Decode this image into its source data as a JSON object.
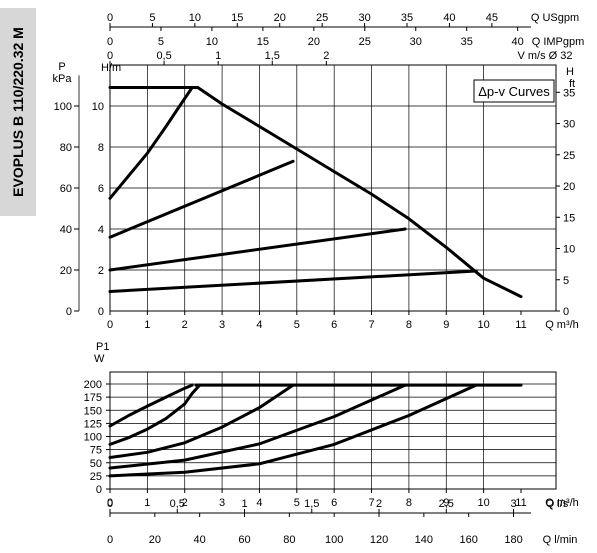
{
  "model_title": "EVOPLUS B 110/220.32 M",
  "chart_data": [
    {
      "type": "line",
      "title": "",
      "legend_label": "Δp-v Curves",
      "legend_position": "top-right",
      "grid": true,
      "xlabel": "Q m³/h",
      "xlim": [
        0,
        11
      ],
      "x_ticks": [
        "0",
        "1",
        "2",
        "3",
        "4",
        "5",
        "6",
        "7",
        "8",
        "9",
        "10",
        "11"
      ],
      "ylabel_left_top": "H/m",
      "ylim_left": [
        0,
        12
      ],
      "y_ticks_left": [
        "0",
        "2",
        "4",
        "6",
        "8",
        "10"
      ],
      "ylabel_far_left": "P",
      "ylabel_far_left_unit": "kPa",
      "y_ticks_far_left": [
        "0",
        "20",
        "40",
        "60",
        "80",
        "100"
      ],
      "ylabel_right": "H",
      "ylabel_right_unit": "ft",
      "y_ticks_right": [
        "0",
        "5",
        "10",
        "15",
        "20",
        "25",
        "30",
        "35"
      ],
      "top_axes": [
        {
          "label": "Q USgpm",
          "ticks": [
            "0",
            "5",
            "10",
            "15",
            "20",
            "25",
            "30",
            "35",
            "40",
            "45"
          ]
        },
        {
          "label": "Q IMPgpm",
          "ticks": [
            "0",
            "5",
            "10",
            "15",
            "20",
            "25",
            "30",
            "35",
            "40"
          ]
        },
        {
          "label": "V m/s Ø 32",
          "ticks": [
            "0",
            "0,5",
            "1",
            "1,5",
            "2"
          ]
        }
      ],
      "series": [
        {
          "points": [
            [
              0,
              5.5
            ],
            [
              0.5,
              6.6
            ],
            [
              1,
              7.7
            ],
            [
              1.5,
              9.0
            ],
            [
              1.9,
              10.1
            ],
            [
              2.2,
              10.9
            ]
          ]
        },
        {
          "points": [
            [
              0,
              10.9
            ],
            [
              2.2,
              10.9
            ],
            [
              2.35,
              10.9
            ]
          ]
        },
        {
          "points": [
            [
              2.35,
              10.9
            ],
            [
              3,
              10.1
            ],
            [
              4,
              9.0
            ],
            [
              5,
              7.9
            ],
            [
              6,
              6.8
            ],
            [
              7,
              5.7
            ],
            [
              8,
              4.5
            ],
            [
              9,
              3.1
            ],
            [
              10,
              1.6
            ],
            [
              11,
              0.7
            ]
          ]
        },
        {
          "points": [
            [
              0,
              3.6
            ],
            [
              4.9,
              7.3
            ]
          ]
        },
        {
          "points": [
            [
              0,
              2.0
            ],
            [
              7.9,
              4.0
            ]
          ]
        },
        {
          "points": [
            [
              0,
              0.95
            ],
            [
              9.8,
              1.95
            ]
          ]
        }
      ]
    },
    {
      "type": "line",
      "title": "",
      "grid": true,
      "ylabel": "P1",
      "ylabel_unit": "W",
      "ylim": [
        0,
        220
      ],
      "y_ticks": [
        "0",
        "25",
        "50",
        "75",
        "100",
        "125",
        "150",
        "175",
        "200"
      ],
      "xlabel": "Q m³/h",
      "xlim": [
        0,
        11
      ],
      "x_ticks": [
        "0",
        "1",
        "2",
        "3",
        "4",
        "5",
        "6",
        "7",
        "8",
        "9",
        "10",
        "11"
      ],
      "bottom_axes": [
        {
          "label": "Q l/s",
          "ticks": [
            "0",
            "0,5",
            "1",
            "1,5",
            "2",
            "2,5",
            "3"
          ]
        },
        {
          "label": "Q l/min",
          "ticks": [
            "0",
            "20",
            "40",
            "60",
            "80",
            "100",
            "120",
            "140",
            "160",
            "180"
          ]
        }
      ],
      "series": [
        {
          "points": [
            [
              0,
              120
            ],
            [
              0.5,
              140
            ],
            [
              1,
              158
            ],
            [
              1.5,
              175
            ],
            [
              2,
              192
            ],
            [
              2.2,
              198
            ]
          ]
        },
        {
          "points": [
            [
              0,
              85
            ],
            [
              0.5,
              98
            ],
            [
              1,
              114
            ],
            [
              1.5,
              134
            ],
            [
              2,
              162
            ],
            [
              2.2,
              182
            ],
            [
              2.4,
              198
            ]
          ]
        },
        {
          "points": [
            [
              0,
              60
            ],
            [
              1,
              70
            ],
            [
              2,
              88
            ],
            [
              3,
              118
            ],
            [
              4,
              155
            ],
            [
              4.9,
              198
            ]
          ]
        },
        {
          "points": [
            [
              0,
              40
            ],
            [
              2,
              55
            ],
            [
              4,
              86
            ],
            [
              6,
              138
            ],
            [
              7.9,
              198
            ]
          ]
        },
        {
          "points": [
            [
              0,
              25
            ],
            [
              2,
              32
            ],
            [
              4,
              48
            ],
            [
              6,
              85
            ],
            [
              8,
              140
            ],
            [
              9.8,
              198
            ]
          ]
        },
        {
          "points": [
            [
              2.3,
              198
            ],
            [
              11,
              198
            ]
          ]
        }
      ]
    }
  ]
}
